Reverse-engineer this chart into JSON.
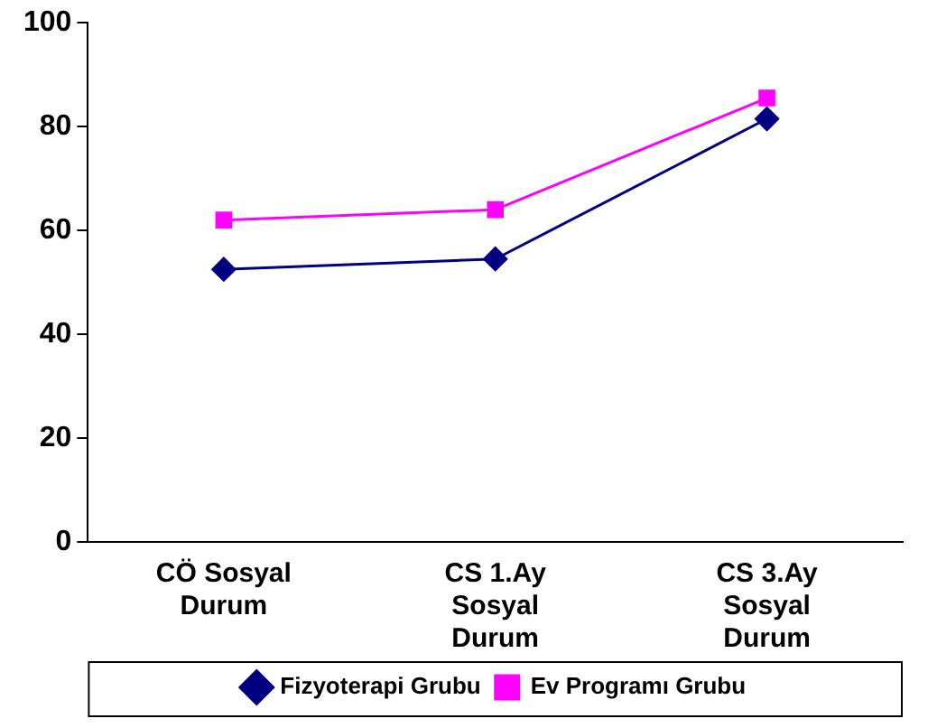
{
  "chart_data": {
    "type": "line",
    "categories": [
      "CÖ Sosyal Durum",
      "CS 1.Ay Sosyal Durum",
      "CS 3.Ay Sosyal Durum"
    ],
    "series": [
      {
        "name": "Fizyoterapi Grubu",
        "color": "#000080",
        "marker": "diamond",
        "values": [
          52.5,
          54.5,
          81.5
        ]
      },
      {
        "name": "Ev Programı Grubu",
        "color": "#ff00ff",
        "marker": "square",
        "values": [
          62,
          64,
          85.5
        ]
      }
    ],
    "ylim": [
      0,
      100
    ],
    "yticks": [
      0,
      20,
      40,
      60,
      80,
      100
    ],
    "grid": false,
    "legend": "bottom",
    "line_style": "solid"
  }
}
